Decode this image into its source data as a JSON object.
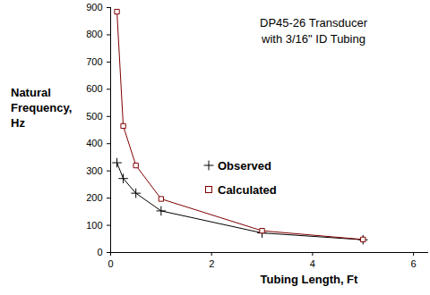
{
  "chart_data": {
    "type": "line",
    "title": "DP45-26 Transducer",
    "subtitle": "with 3/16\" ID Tubing",
    "x_label": "Tubing Length, Ft",
    "y_label": "Natural Frequency, Hz",
    "x": [
      0.125,
      0.25,
      0.5,
      1,
      3,
      5
    ],
    "series": [
      {
        "name": "Observed",
        "color": "#000000",
        "marker": "plus",
        "values": [
          330,
          272,
          218,
          153,
          72,
          47
        ]
      },
      {
        "name": "Calculated",
        "color": "#800000",
        "marker": "square",
        "values": [
          885,
          465,
          320,
          197,
          80,
          48
        ]
      }
    ],
    "xlim": [
      0,
      6.3
    ],
    "xticks": [
      0,
      2,
      4,
      6
    ],
    "ylim": [
      0,
      900
    ],
    "yticks": [
      0,
      100,
      200,
      300,
      400,
      500,
      600,
      700,
      800,
      900
    ],
    "grid": false
  }
}
